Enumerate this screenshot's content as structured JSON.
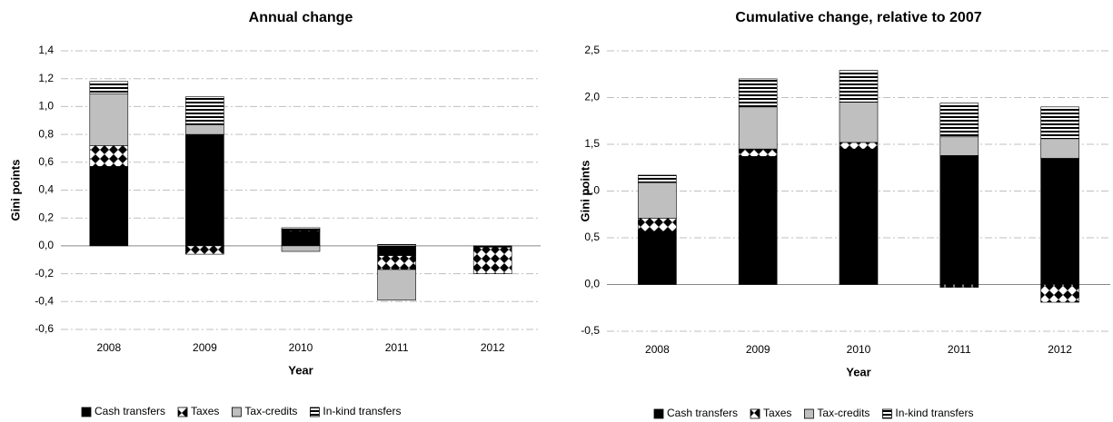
{
  "chart_data": [
    {
      "type": "stacked_bar",
      "title": "Annual change",
      "xlabel": "Year",
      "ylabel": "Gini points",
      "categories": [
        "2008",
        "2009",
        "2010",
        "2011",
        "2012"
      ],
      "series": [
        {
          "name": "Cash transfers",
          "color": "#000000",
          "pattern": "solid",
          "values": [
            0.57,
            0.8,
            0.1,
            -0.07,
            -0.01
          ]
        },
        {
          "name": "Taxes",
          "color": "#000000",
          "pattern": "diamonds",
          "values": [
            0.15,
            -0.06,
            0.01,
            -0.1,
            -0.19
          ]
        },
        {
          "name": "Tax-credits",
          "color": "#bfbfbf",
          "pattern": "solid",
          "values": [
            0.37,
            0.07,
            -0.04,
            -0.22,
            0
          ]
        },
        {
          "name": "In-kind transfers",
          "color": "#000000",
          "pattern": "stripes",
          "values": [
            0.09,
            0.2,
            0.02,
            0.01,
            0
          ]
        }
      ],
      "ylim": [
        -0.6,
        1.4
      ],
      "yticks": [
        {
          "value": -0.6,
          "label": "-0,6"
        },
        {
          "value": -0.4,
          "label": "-0,4"
        },
        {
          "value": -0.2,
          "label": "-0,2"
        },
        {
          "value": 0,
          "label": "0,0"
        },
        {
          "value": 0.2,
          "label": "0,2"
        },
        {
          "value": 0.4,
          "label": "0,4"
        },
        {
          "value": 0.6,
          "label": "0,6"
        },
        {
          "value": 0.8,
          "label": "0,8"
        },
        {
          "value": 1.0,
          "label": "1,0"
        },
        {
          "value": 1.2,
          "label": "1,2"
        },
        {
          "value": 1.4,
          "label": "1,4"
        }
      ],
      "grid": true,
      "legend": "bottom"
    },
    {
      "type": "stacked_bar",
      "title": "Cumulative change, relative to 2007",
      "xlabel": "Year",
      "ylabel": "Gini points",
      "categories": [
        "2008",
        "2009",
        "2010",
        "2011",
        "2012"
      ],
      "series": [
        {
          "name": "Cash transfers",
          "color": "#000000",
          "pattern": "solid",
          "values": [
            0.57,
            1.37,
            1.45,
            1.38,
            1.35
          ]
        },
        {
          "name": "Taxes",
          "color": "#000000",
          "pattern": "diamonds",
          "values": [
            0.14,
            0.08,
            0.07,
            -0.03,
            -0.19
          ]
        },
        {
          "name": "Tax-credits",
          "color": "#bfbfbf",
          "pattern": "solid",
          "values": [
            0.38,
            0.45,
            0.43,
            0.2,
            0.21
          ]
        },
        {
          "name": "In-kind transfers",
          "color": "#000000",
          "pattern": "stripes",
          "values": [
            0.08,
            0.3,
            0.34,
            0.36,
            0.34
          ]
        }
      ],
      "ylim": [
        -0.5,
        2.5
      ],
      "yticks": [
        {
          "value": -0.5,
          "label": "-0,5"
        },
        {
          "value": 0,
          "label": "0,0"
        },
        {
          "value": 0.5,
          "label": "0,5"
        },
        {
          "value": 1.0,
          "label": "1,0"
        },
        {
          "value": 1.5,
          "label": "1,5"
        },
        {
          "value": 2.0,
          "label": "2,0"
        },
        {
          "value": 2.5,
          "label": "2,5"
        }
      ],
      "grid": true,
      "legend": "bottom"
    }
  ]
}
